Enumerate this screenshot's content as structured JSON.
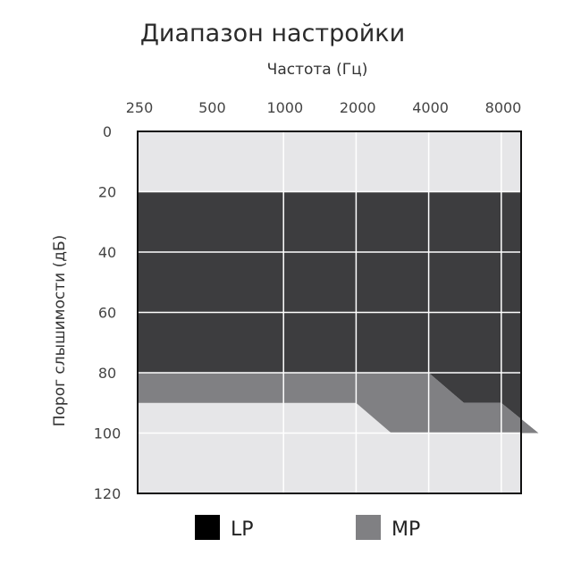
{
  "chart_data": {
    "type": "area",
    "title": "Диапазон настройки",
    "xlabel": "Частота (Гц)",
    "ylabel": "Порог слышимости (дБ)",
    "x_ticks": [
      "250",
      "500",
      "1000",
      "2000",
      "4000",
      "8000"
    ],
    "y_ticks": [
      "0",
      "20",
      "40",
      "60",
      "80",
      "100",
      "120"
    ],
    "x_scale": "log",
    "y_inverted": true,
    "ylim": [
      0,
      120
    ],
    "grid": true,
    "legend_position": "bottom",
    "series": [
      {
        "name": "LP",
        "color": "#3d3d3f",
        "upper": [
          [
            250,
            20
          ],
          [
            8000,
            20
          ]
        ],
        "lower": [
          [
            250,
            80
          ],
          [
            2000,
            80
          ],
          [
            2800,
            90
          ],
          [
            4000,
            90
          ],
          [
            5700,
            100
          ],
          [
            8000,
            100
          ]
        ]
      },
      {
        "name": "MP",
        "color": "#808083",
        "upper": [
          [
            250,
            80
          ],
          [
            2000,
            80
          ],
          [
            2800,
            90
          ],
          [
            4000,
            90
          ],
          [
            5700,
            100
          ]
        ],
        "lower": [
          [
            250,
            90
          ],
          [
            1000,
            90
          ],
          [
            1400,
            100
          ],
          [
            5700,
            100
          ]
        ]
      }
    ],
    "background_color": "#e6e6e8",
    "grid_color": "#ffffff"
  }
}
